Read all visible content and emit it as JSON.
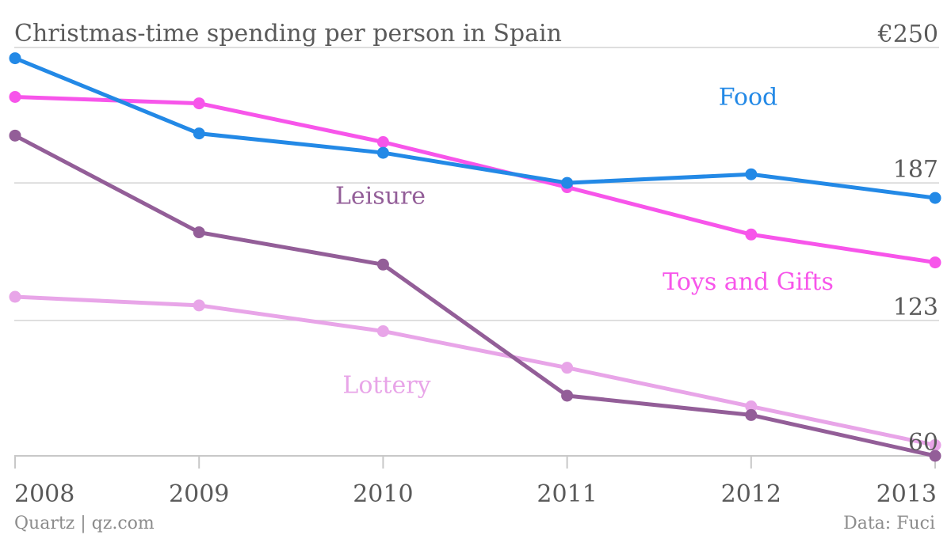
{
  "source_left": "Quartz | qz.com",
  "source_right": "Data: Fuci",
  "chart_data": {
    "type": "line",
    "title": "Christmas-time spending per person in Spain",
    "x": [
      "2008",
      "2009",
      "2010",
      "2011",
      "2012",
      "2013"
    ],
    "y_ticks": [
      {
        "value": 250,
        "label": "€250"
      },
      {
        "value": 187,
        "label": "187"
      },
      {
        "value": 123,
        "label": "123"
      },
      {
        "value": 60,
        "label": "60"
      }
    ],
    "ylim": [
      60,
      250
    ],
    "grid": true,
    "series": [
      {
        "name": "Food",
        "color": "#2389e6",
        "values": [
          245,
          210,
          201,
          187,
          191,
          180
        ]
      },
      {
        "name": "Toys and Gifts",
        "color": "#f755ea",
        "values": [
          227,
          224,
          206,
          185,
          163,
          150
        ]
      },
      {
        "name": "Leisure",
        "color": "#935e98",
        "values": [
          209,
          164,
          149,
          88,
          79,
          60
        ]
      },
      {
        "name": "Lottery",
        "color": "#e8a5e8",
        "values": [
          134,
          130,
          118,
          101,
          83,
          65
        ]
      }
    ]
  }
}
